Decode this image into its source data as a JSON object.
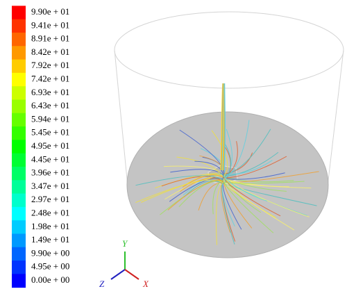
{
  "legend": {
    "labels": [
      "9.90e + 01",
      "9.41e + 01",
      "8.91e + 01",
      "8.42e + 01",
      "7.92e + 01",
      "7.42e + 01",
      "6.93e + 01",
      "6.43e + 01",
      "5.94e + 01",
      "5.45e + 01",
      "4.95e + 01",
      "4.45e + 01",
      "3.96e + 01",
      "3.47e + 01",
      "2.97e + 01",
      "2.48e + 01",
      "1.98e + 01",
      "1.49e + 01",
      "9.90e + 00",
      "4.95e + 00",
      "0.00e + 00"
    ]
  },
  "axes": {
    "y": "Y",
    "z": "Z",
    "x": "X"
  }
}
